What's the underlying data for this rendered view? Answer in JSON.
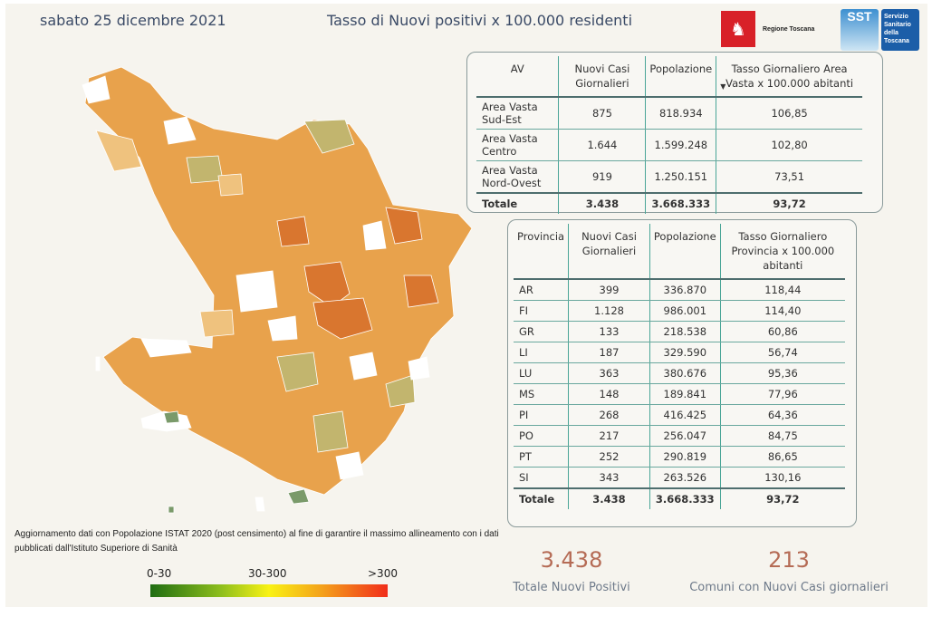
{
  "header": {
    "date": "sabato 25 dicembre 2021",
    "title": "Tasso di Nuovi positivi x 100.000 residenti",
    "logo_regione": "Regione Toscana",
    "logo_sst": "SST",
    "logo_sst_text": "Servizio Sanitario della Toscana"
  },
  "av_table": {
    "columns": [
      "AV",
      "Nuovi Casi Giornalieri",
      "Popolazione",
      "Tasso Giornaliero Area Vasta x 100.000 abitanti"
    ],
    "sort_icon": "sort-descending-icon",
    "rows": [
      [
        "Area Vasta Sud-Est",
        "875",
        "818.934",
        "106,85"
      ],
      [
        "Area Vasta Centro",
        "1.644",
        "1.599.248",
        "102,80"
      ],
      [
        "Area Vasta Nord-Ovest",
        "919",
        "1.250.151",
        "73,51"
      ]
    ],
    "total": [
      "Totale",
      "3.438",
      "3.668.333",
      "93,72"
    ]
  },
  "prov_table": {
    "columns": [
      "Provincia",
      "Nuovi Casi Giornalieri",
      "Popolazione",
      "Tasso Giornaliero Provincia x 100.000 abitanti"
    ],
    "rows": [
      [
        "AR",
        "399",
        "336.870",
        "118,44"
      ],
      [
        "FI",
        "1.128",
        "986.001",
        "114,40"
      ],
      [
        "GR",
        "133",
        "218.538",
        "60,86"
      ],
      [
        "LI",
        "187",
        "329.590",
        "56,74"
      ],
      [
        "LU",
        "363",
        "380.676",
        "95,36"
      ],
      [
        "MS",
        "148",
        "189.841",
        "77,96"
      ],
      [
        "PI",
        "268",
        "416.425",
        "64,36"
      ],
      [
        "PO",
        "217",
        "256.047",
        "84,75"
      ],
      [
        "PT",
        "252",
        "290.819",
        "86,65"
      ],
      [
        "SI",
        "343",
        "263.526",
        "130,16"
      ]
    ],
    "total": [
      "Totale",
      "3.438",
      "3.668.333",
      "93,72"
    ]
  },
  "note": "Aggiornamento dati con Popolazione ISTAT 2020 (post censimento) al fine di garantire il massimo allineamento con i dati pubblicati dall'Istituto Superiore di Sanità",
  "legend": {
    "low": "0-30",
    "mid": "30-300",
    "high": ">300",
    "colors": [
      "#1f6d12",
      "#f9f214",
      "#f12d1a"
    ]
  },
  "kpis": [
    {
      "value": "3.438",
      "label": "Totale Nuovi Positivi"
    },
    {
      "value": "213",
      "label": "Comuni con Nuovi Casi giornalieri"
    }
  ],
  "map": {
    "colors": {
      "base": "#e8a24c",
      "dark": "#d9762f",
      "light": "#efc27e",
      "olive": "#c2b56e",
      "green": "#7a9a6a",
      "nodata": "#ffffff"
    }
  }
}
